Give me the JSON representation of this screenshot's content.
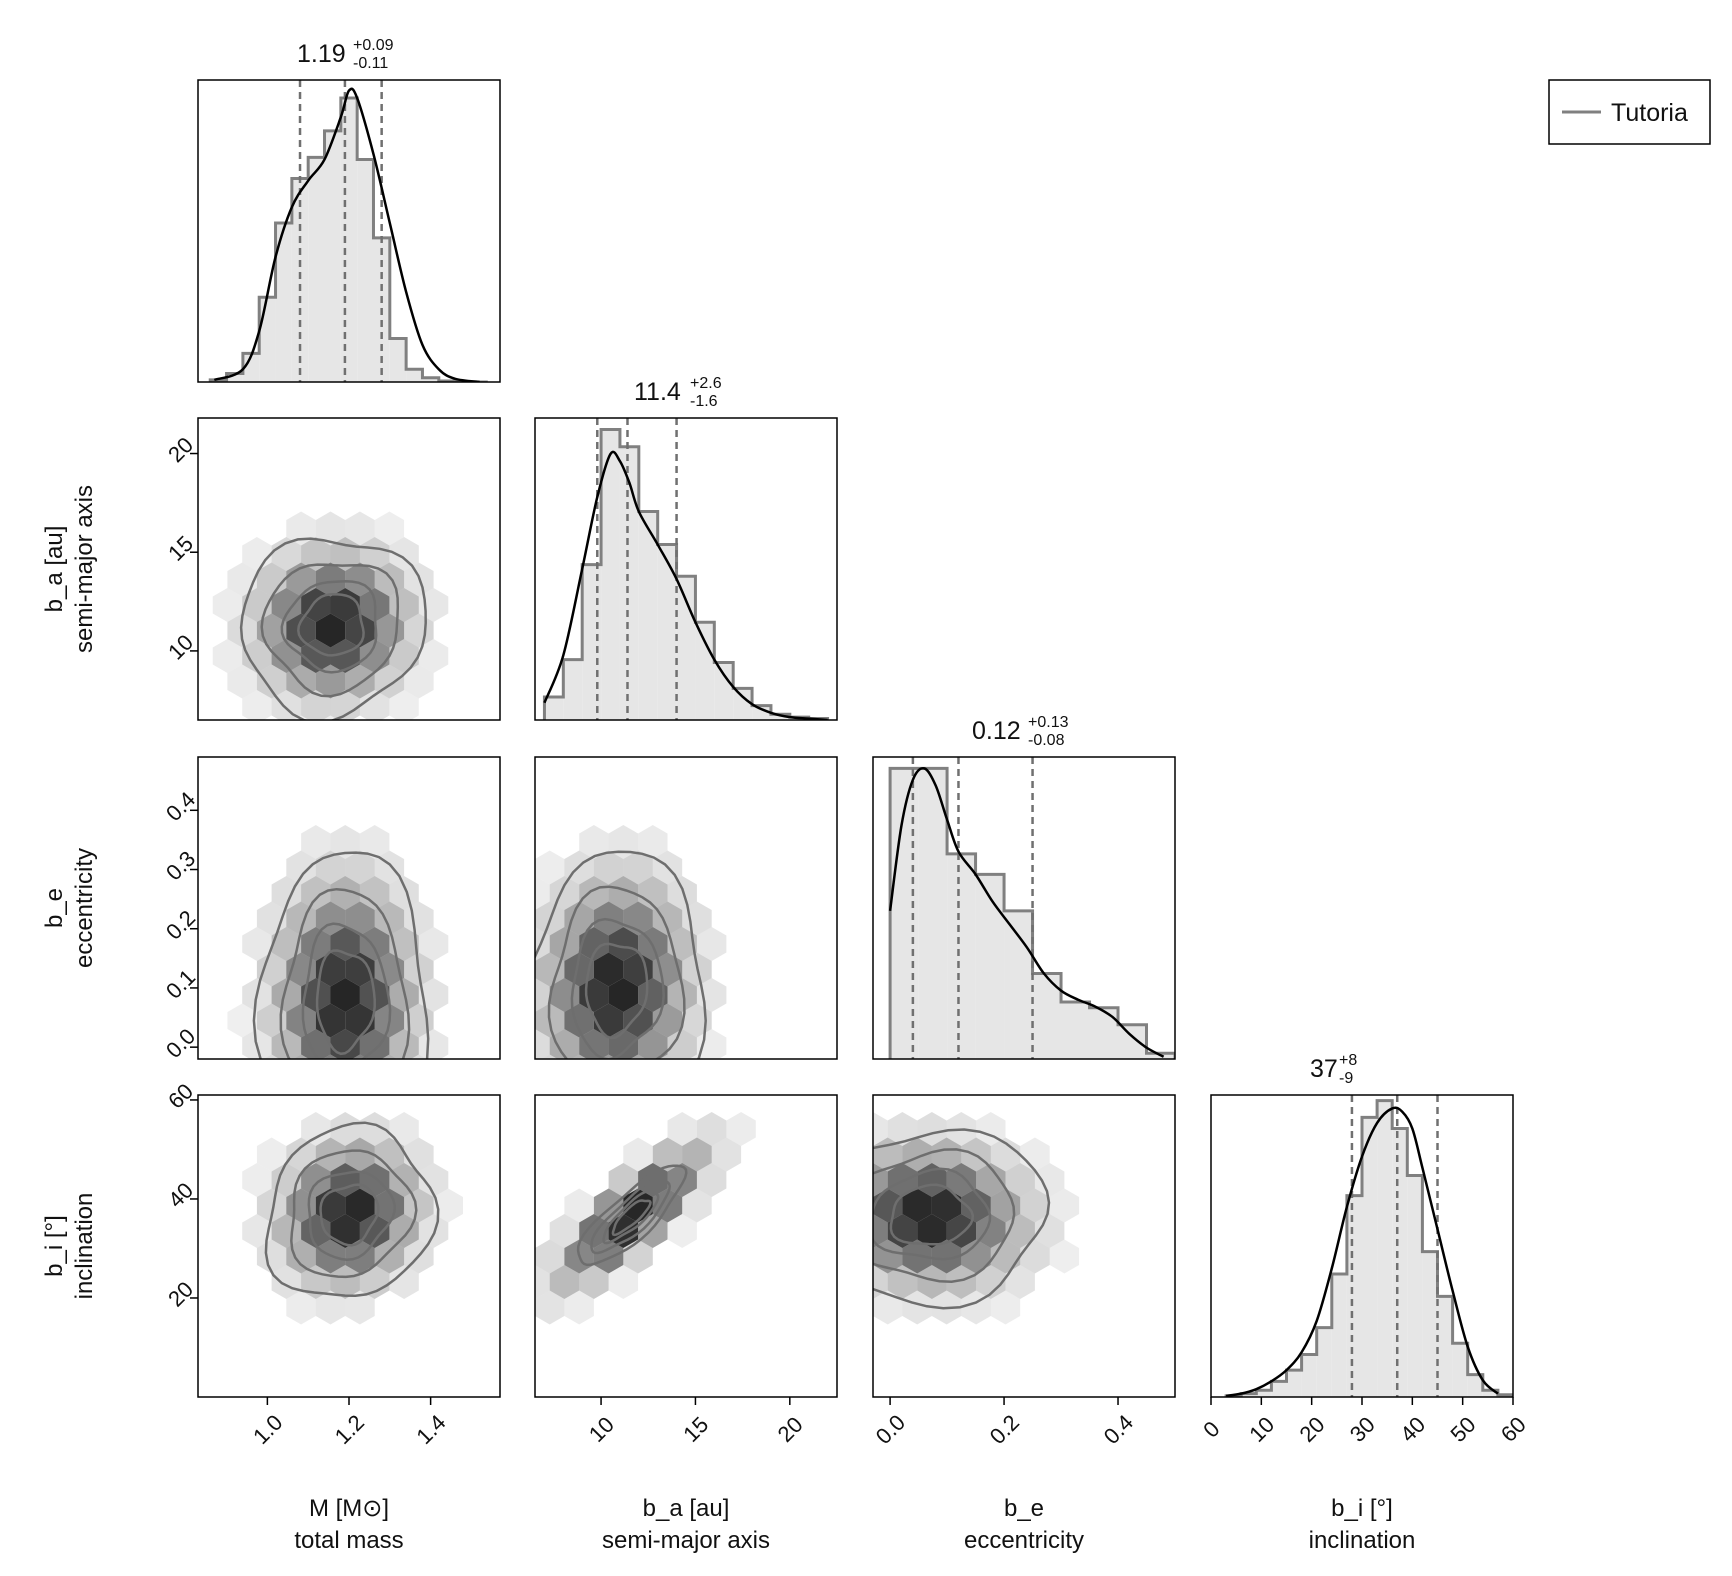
{
  "colors": {
    "hist_fill": "#e6e6e6",
    "hist_step": "#808080",
    "kde_line": "#000000",
    "quantile_line": "#707070",
    "contour": "#6e6e6e",
    "hex_base": "#000000",
    "frame": "#000000"
  },
  "legend": {
    "label": "Tutoria",
    "position": "top-right"
  },
  "chart_data": [
    {
      "type": "histogram",
      "name": "M-marginal",
      "param": "M",
      "title_value": "1.19",
      "title_plus": "+0.09",
      "title_minus": "-0.11",
      "quantiles": [
        1.08,
        1.19,
        1.28
      ],
      "xlim": [
        0.83,
        1.57
      ],
      "bins": [
        0.86,
        0.9,
        0.94,
        0.98,
        1.02,
        1.06,
        1.1,
        1.14,
        1.18,
        1.22,
        1.26,
        1.3,
        1.34,
        1.38,
        1.42,
        1.46,
        1.5,
        1.54
      ],
      "counts": [
        2,
        8,
        27,
        80,
        150,
        192,
        212,
        237,
        268,
        210,
        136,
        41,
        12,
        4,
        1,
        0,
        0
      ],
      "kde_x": [
        0.87,
        0.94,
        0.98,
        1.02,
        1.06,
        1.1,
        1.14,
        1.18,
        1.2,
        1.22,
        1.26,
        1.3,
        1.34,
        1.38,
        1.42,
        1.46,
        1.52
      ],
      "kde_y": [
        2,
        12,
        48,
        118,
        165,
        190,
        210,
        250,
        275,
        268,
        215,
        150,
        85,
        35,
        12,
        3,
        0
      ],
      "ymax": 285
    },
    {
      "type": "histogram",
      "name": "ba-marginal",
      "param": "b_a",
      "title_value": "11.4",
      "title_plus": "+2.6",
      "title_minus": "-1.6",
      "quantiles": [
        9.8,
        11.4,
        14.0
      ],
      "xlim": [
        6.5,
        22.5
      ],
      "bins": [
        7.0,
        8.0,
        9.0,
        10.0,
        11.0,
        12.0,
        13.0,
        14.0,
        15.0,
        16.0,
        17.0,
        18.0,
        19.0,
        20.0,
        21.0,
        22.0
      ],
      "counts": [
        16,
        42,
        108,
        202,
        190,
        145,
        122,
        100,
        68,
        40,
        22,
        10,
        4,
        2,
        1
      ],
      "kde_x": [
        7.0,
        8.0,
        9.0,
        9.8,
        10.5,
        11.0,
        11.5,
        12.0,
        13.0,
        14.0,
        15.0,
        16.0,
        17.0,
        18.0,
        19.0,
        20.0,
        21.0,
        22.0
      ],
      "kde_y": [
        12,
        45,
        105,
        155,
        185,
        180,
        165,
        145,
        122,
        98,
        68,
        42,
        23,
        11,
        5,
        2,
        1,
        0
      ],
      "ymax": 210
    },
    {
      "type": "histogram",
      "name": "be-marginal",
      "param": "b_e",
      "title_value": "0.12",
      "title_plus": "+0.13",
      "title_minus": "-0.08",
      "quantiles": [
        0.04,
        0.12,
        0.25
      ],
      "xlim": [
        -0.03,
        0.5
      ],
      "bins": [
        0.0,
        0.05,
        0.1,
        0.15,
        0.2,
        0.25,
        0.3,
        0.35,
        0.4,
        0.45,
        0.5
      ],
      "counts": [
        255,
        255,
        180,
        162,
        130,
        75,
        50,
        45,
        30,
        5
      ],
      "kde_x": [
        0.0,
        0.02,
        0.04,
        0.06,
        0.08,
        0.1,
        0.12,
        0.15,
        0.18,
        0.21,
        0.24,
        0.27,
        0.3,
        0.33,
        0.36,
        0.39,
        0.42,
        0.45,
        0.48
      ],
      "kde_y": [
        130,
        205,
        245,
        255,
        240,
        210,
        182,
        162,
        138,
        118,
        98,
        75,
        60,
        52,
        46,
        37,
        22,
        10,
        2
      ],
      "ymax": 265
    },
    {
      "type": "histogram",
      "name": "bi-marginal",
      "param": "b_i",
      "title_value": "37",
      "title_plus": "+8",
      "title_minus": "-9",
      "quantiles": [
        28,
        37,
        45
      ],
      "xlim": [
        0,
        60
      ],
      "bins": [
        3,
        6,
        9,
        12,
        15,
        18,
        21,
        24,
        27,
        30,
        33,
        36,
        39,
        42,
        45,
        48,
        51,
        54,
        57,
        60
      ],
      "counts": [
        1,
        3,
        6,
        14,
        24,
        38,
        62,
        110,
        180,
        250,
        265,
        240,
        198,
        130,
        90,
        48,
        20,
        6,
        2
      ],
      "kde_x": [
        3,
        6,
        9,
        12,
        15,
        18,
        21,
        24,
        27,
        30,
        33,
        36,
        38,
        40,
        42,
        45,
        48,
        51,
        54,
        57
      ],
      "kde_y": [
        1,
        3,
        7,
        14,
        24,
        40,
        68,
        115,
        170,
        215,
        245,
        258,
        255,
        240,
        205,
        150,
        95,
        45,
        15,
        3
      ],
      "ymax": 270
    },
    {
      "type": "hexbin-contour",
      "name": "ba-vs-M",
      "x_param": "M",
      "y_param": "b_a",
      "xlim": [
        0.83,
        1.57
      ],
      "ylim": [
        6.5,
        21.8
      ],
      "center": [
        1.16,
        11.3
      ],
      "spread": [
        0.11,
        2.2
      ],
      "corr": 0.05,
      "contour_levels": [
        0.78,
        0.58,
        0.32,
        0.12
      ]
    },
    {
      "type": "hexbin-contour",
      "name": "be-vs-M",
      "x_param": "M",
      "y_param": "b_e",
      "xlim": [
        0.83,
        1.57
      ],
      "ylim": [
        -0.02,
        0.49
      ],
      "center": [
        1.19,
        0.08
      ],
      "spread": [
        0.1,
        0.12
      ],
      "corr": 0.0,
      "contour_levels": [
        0.78,
        0.58,
        0.32,
        0.12
      ]
    },
    {
      "type": "hexbin-contour",
      "name": "bi-vs-M",
      "x_param": "M",
      "y_param": "b_i",
      "xlim": [
        0.83,
        1.57
      ],
      "ylim": [
        0,
        61
      ],
      "center": [
        1.2,
        37
      ],
      "spread": [
        0.1,
        8.5
      ],
      "corr": 0.1,
      "contour_levels": [
        0.78,
        0.58,
        0.32,
        0.12
      ]
    },
    {
      "type": "hexbin-contour",
      "name": "be-vs-ba",
      "x_param": "b_a",
      "y_param": "b_e",
      "xlim": [
        6.5,
        22.5
      ],
      "ylim": [
        -0.02,
        0.49
      ],
      "center": [
        10.8,
        0.1
      ],
      "spread": [
        2.3,
        0.11
      ],
      "corr": 0.05,
      "contour_levels": [
        0.78,
        0.58,
        0.32,
        0.12
      ]
    },
    {
      "type": "hexbin-contour",
      "name": "bi-vs-ba",
      "x_param": "b_a",
      "y_param": "b_i",
      "xlim": [
        6.5,
        22.5
      ],
      "ylim": [
        0,
        61
      ],
      "center": [
        11.6,
        36.5
      ],
      "spread": [
        2.4,
        8.5
      ],
      "corr": 0.82,
      "contour_levels": [
        0.78,
        0.58,
        0.32,
        0.12
      ]
    },
    {
      "type": "hexbin-contour",
      "name": "bi-vs-be",
      "x_param": "b_e",
      "y_param": "b_i",
      "xlim": [
        -0.03,
        0.5
      ],
      "ylim": [
        0,
        61
      ],
      "center": [
        0.07,
        36.5
      ],
      "spread": [
        0.1,
        8.5
      ],
      "corr": -0.05,
      "contour_levels": [
        0.78,
        0.58,
        0.32,
        0.12
      ]
    }
  ],
  "axes": {
    "x_labels": [
      {
        "line1": "M [M⊙]",
        "line2": "total mass"
      },
      {
        "line1": "b_a [au]",
        "line2": "semi-major axis"
      },
      {
        "line1": "b_e",
        "line2": "eccentricity"
      },
      {
        "line1": "b_i [°]",
        "line2": "inclination"
      }
    ],
    "y_labels": [
      {
        "line1": "b_a [au]",
        "line2": "semi-major axis"
      },
      {
        "line1": "b_e",
        "line2": "eccentricity"
      },
      {
        "line1": "b_i [°]",
        "line2": "inclination"
      }
    ],
    "x_ticks": [
      [
        "1.0",
        "1.2",
        "1.4"
      ],
      [
        "10",
        "15",
        "20"
      ],
      [
        "0.0",
        "0.2",
        "0.4"
      ],
      [
        "0",
        "10",
        "20",
        "30",
        "40",
        "50",
        "60"
      ]
    ],
    "x_tick_values": [
      [
        1.0,
        1.2,
        1.4
      ],
      [
        10,
        15,
        20
      ],
      [
        0.0,
        0.2,
        0.4
      ],
      [
        0,
        10,
        20,
        30,
        40,
        50,
        60
      ]
    ],
    "y_ticks": [
      [
        "10",
        "15",
        "20"
      ],
      [
        "0.0",
        "0.1",
        "0.2",
        "0.3",
        "0.4"
      ],
      [
        "20",
        "40",
        "60"
      ]
    ],
    "y_tick_values": [
      [
        10,
        15,
        20
      ],
      [
        0.0,
        0.1,
        0.2,
        0.3,
        0.4
      ],
      [
        20,
        40,
        60
      ]
    ]
  }
}
